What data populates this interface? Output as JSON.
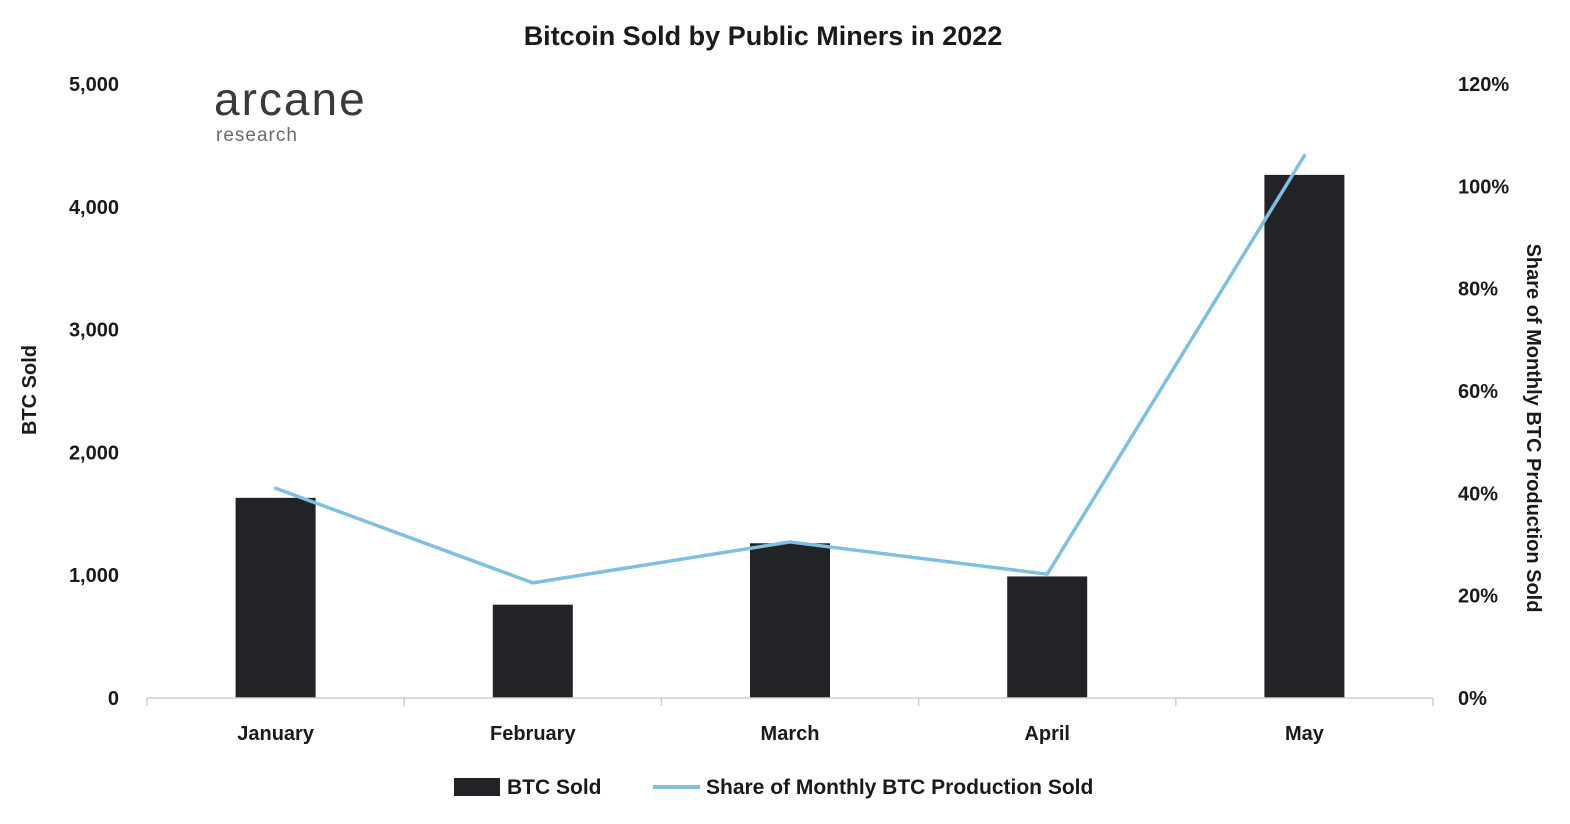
{
  "chart_data": {
    "type": "bar",
    "title": "Bitcoin Sold by Public Miners in 2022",
    "categories": [
      "January",
      "February",
      "March",
      "April",
      "May"
    ],
    "series": [
      {
        "name": "BTC Sold",
        "type": "bar",
        "axis": "left",
        "color": "#222326",
        "values": [
          1630,
          760,
          1260,
          990,
          4260
        ]
      },
      {
        "name": "Share of Monthly BTC Production Sold",
        "type": "line",
        "axis": "right",
        "color": "#7fbfe0",
        "values": [
          41,
          22.5,
          30.5,
          24.2,
          106
        ]
      }
    ],
    "ylabel": "BTC Sold",
    "ylim": [
      0,
      5000
    ],
    "yticks": [
      "0",
      "1,000",
      "2,000",
      "3,000",
      "4,000",
      "5,000"
    ],
    "y2label": "Share of Monthly BTC Production Sold",
    "y2lim": [
      0,
      120
    ],
    "y2ticks": [
      "0%",
      "20%",
      "40%",
      "60%",
      "80%",
      "100%",
      "120%"
    ],
    "grid": false,
    "legend_position": "bottom"
  },
  "logo": {
    "main": "arcane",
    "sub": "research"
  }
}
